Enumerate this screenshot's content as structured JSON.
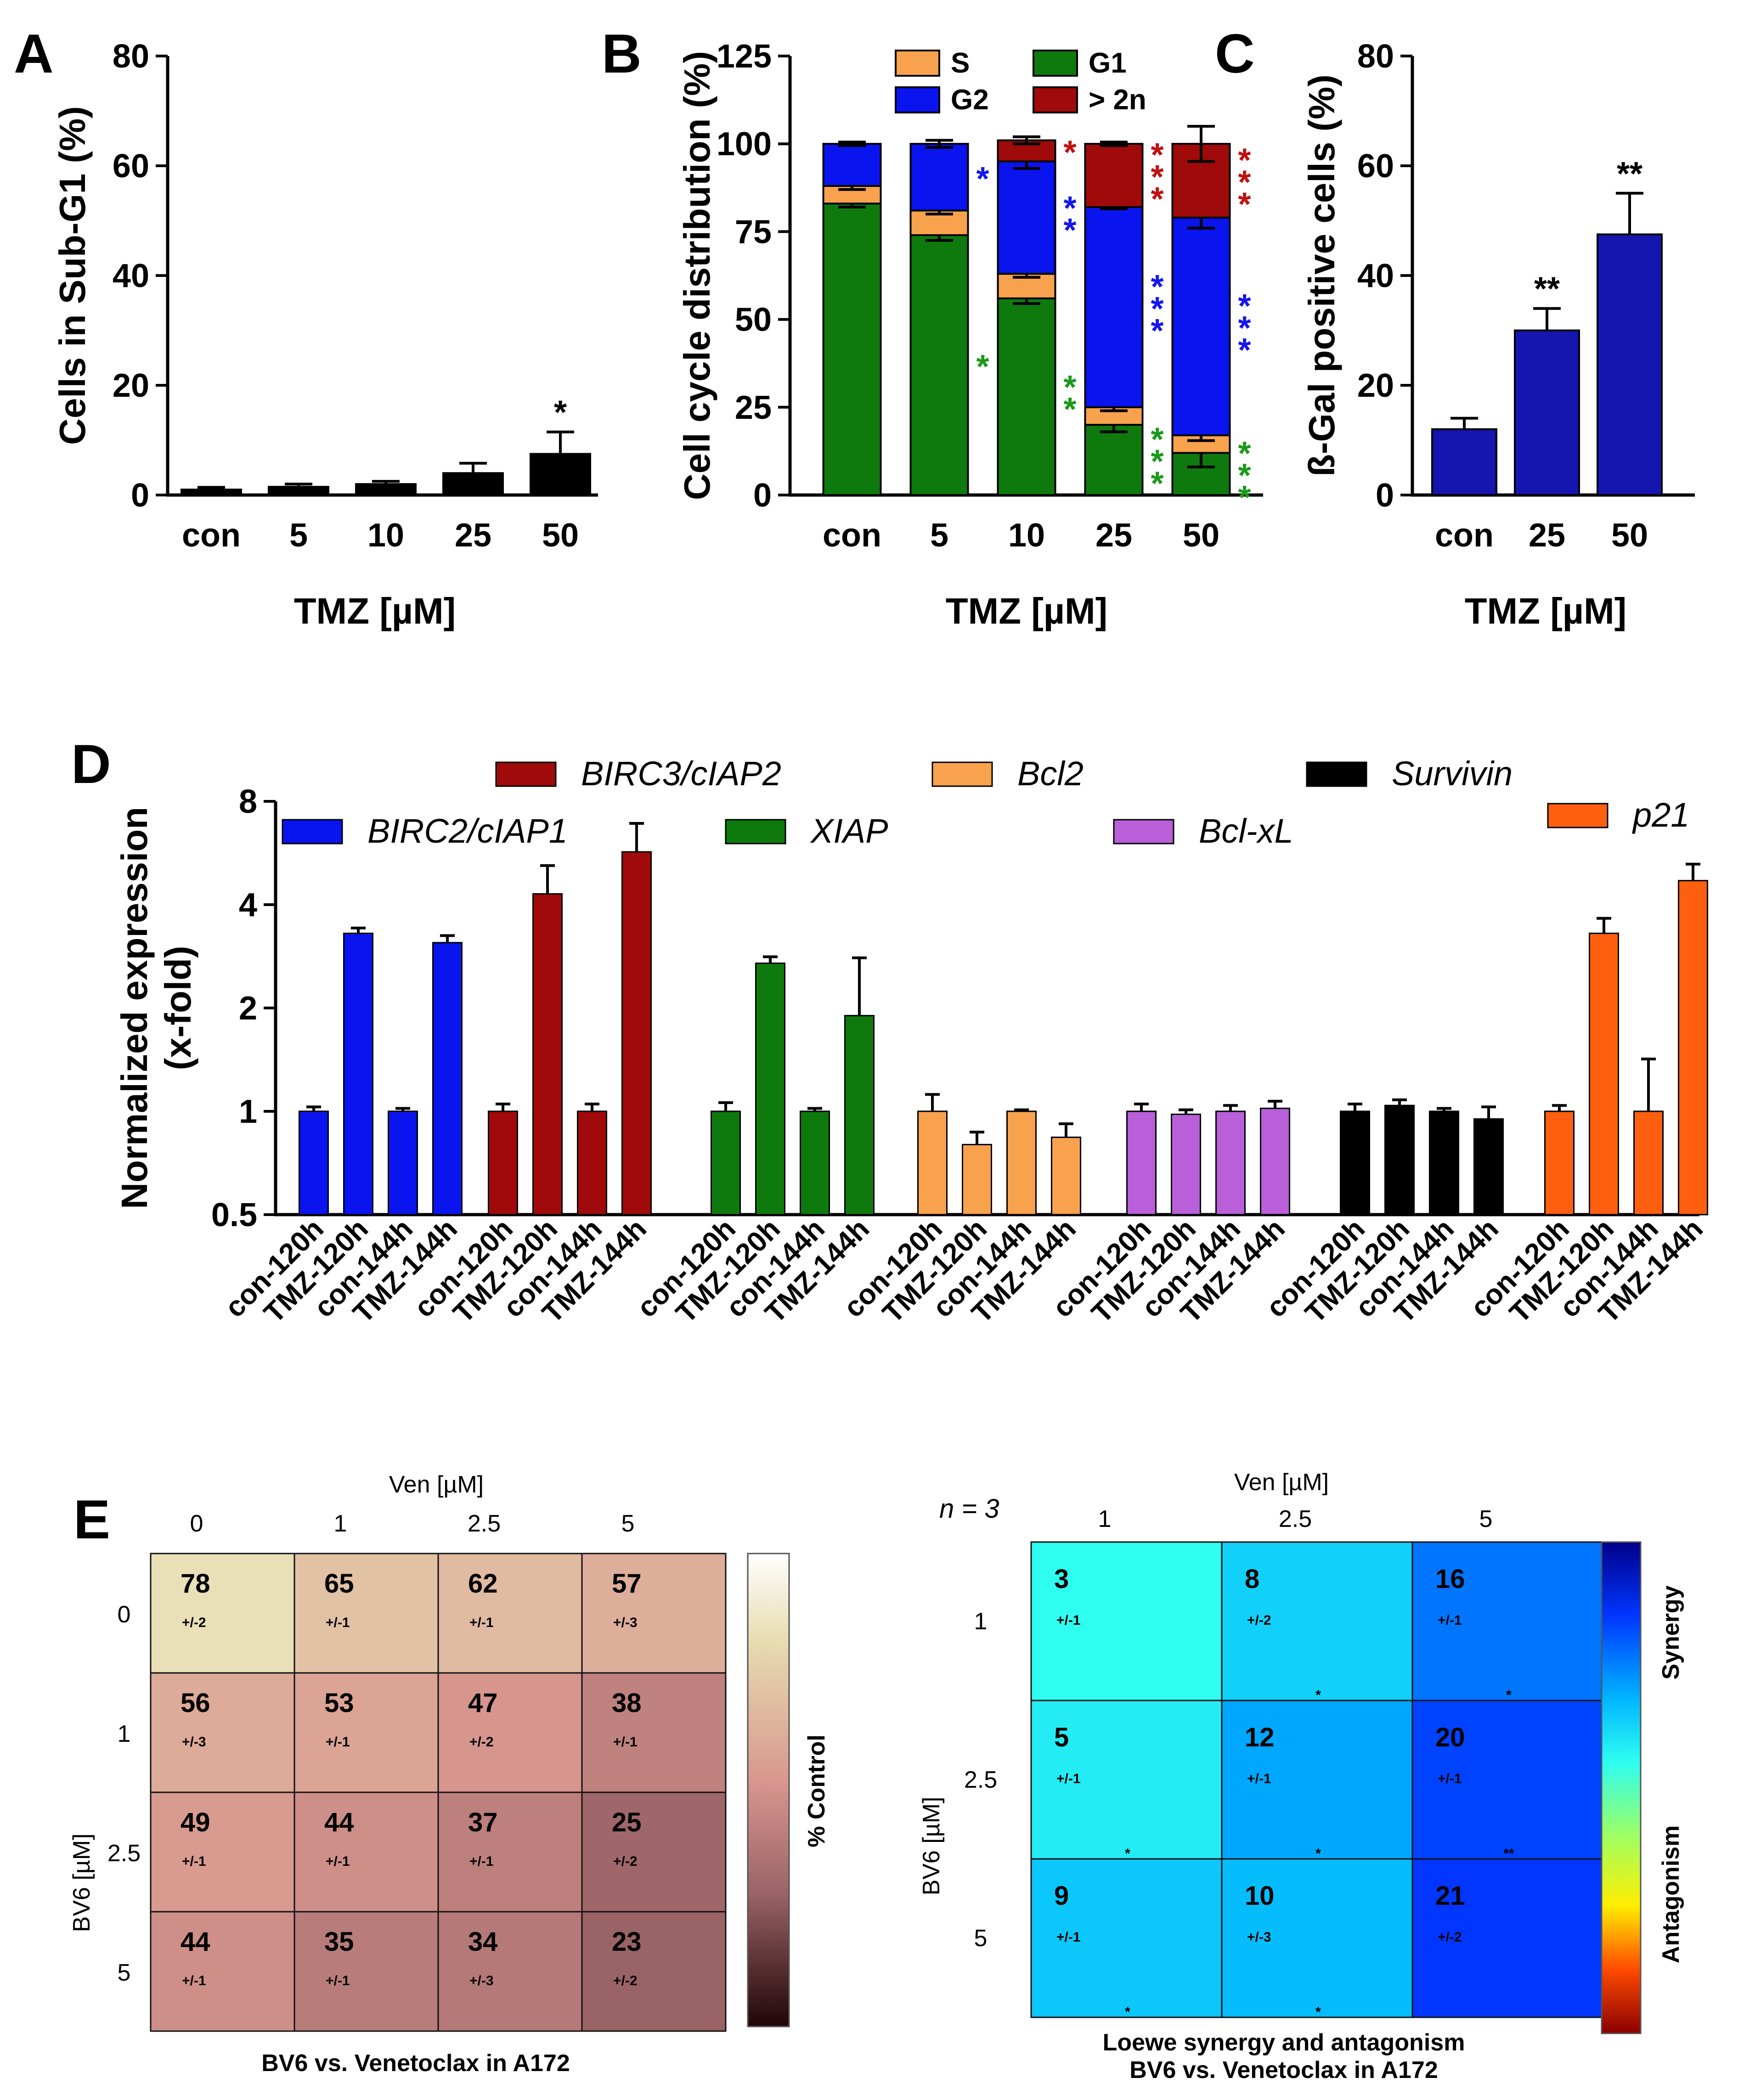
{
  "chart_data": [
    {
      "id": "A",
      "type": "bar",
      "panel_label": "A",
      "ylabel": "Cells in Sub-G1 (%)",
      "xlabel": "TMZ [µM]",
      "ylim": [
        0,
        80
      ],
      "yticks": [
        0,
        20,
        40,
        60,
        80
      ],
      "categories": [
        "con",
        "5",
        "10",
        "25",
        "50"
      ],
      "values": [
        1,
        1.5,
        2,
        4,
        7.5
      ],
      "errors": [
        0.4,
        0.5,
        0.5,
        1.8,
        4
      ],
      "annotations": [
        "",
        "",
        "",
        "",
        "*"
      ],
      "color": "#000000"
    },
    {
      "id": "B",
      "type": "bar",
      "stacked": true,
      "panel_label": "B",
      "ylabel": "Cell cycle distribution (%)",
      "xlabel": "TMZ [µM]",
      "ylim": [
        0,
        125
      ],
      "yticks": [
        0,
        25,
        50,
        75,
        100,
        125
      ],
      "categories": [
        "con",
        "5",
        "10",
        "25",
        "50"
      ],
      "legend": [
        "S",
        "G1",
        "G2",
        "> 2n"
      ],
      "series": [
        {
          "name": "G1",
          "color": "#0e7a0e",
          "values": [
            83,
            74,
            56,
            20,
            12
          ],
          "errors": [
            1,
            1.5,
            1.5,
            2,
            4
          ]
        },
        {
          "name": "S",
          "color": "#f9a24e",
          "values": [
            5,
            7,
            7,
            5,
            5
          ],
          "errors": [
            1,
            1,
            1,
            1,
            1.5
          ]
        },
        {
          "name": "G2",
          "color": "#0a14ee",
          "values": [
            12,
            19,
            32,
            57,
            62
          ],
          "errors": [
            0.5,
            1,
            2,
            0.5,
            3
          ]
        },
        {
          "name": "> 2n",
          "color": "#a00a0a",
          "values": [
            0,
            0,
            6,
            18,
            21
          ],
          "errors": [
            0,
            0,
            1,
            0.5,
            5
          ]
        }
      ],
      "annotations": {
        "G1": [
          "",
          "*",
          "**",
          "***",
          "***"
        ],
        "G2": [
          "",
          "*",
          "**",
          "***",
          "***"
        ],
        "> 2n": [
          "",
          "",
          "*",
          "***",
          "***"
        ]
      }
    },
    {
      "id": "C",
      "type": "bar",
      "panel_label": "C",
      "ylabel": "ß-Gal positive cells (%)",
      "xlabel": "TMZ [µM]",
      "ylim": [
        0,
        80
      ],
      "yticks": [
        0,
        20,
        40,
        60,
        80
      ],
      "categories": [
        "con",
        "25",
        "50"
      ],
      "values": [
        12,
        30,
        47.5
      ],
      "errors": [
        2,
        4,
        7.5
      ],
      "annotations": [
        "",
        "**",
        "**"
      ],
      "color": "#1515b0"
    },
    {
      "id": "D",
      "type": "bar",
      "panel_label": "D",
      "yscale": "log2",
      "ylabel": [
        "Normalized expression",
        "(x-fold)"
      ],
      "ylim": [
        0.5,
        8
      ],
      "yticks": [
        0.5,
        1,
        2,
        4,
        8
      ],
      "ytick_labels": [
        "0.5",
        "1",
        "2",
        "4",
        "8"
      ],
      "categories": [
        "con-120h",
        "TMZ-120h",
        "con-144h",
        "TMZ-144h"
      ],
      "series": [
        {
          "name": "BIRC2/cIAP1",
          "color": "#0a14ee",
          "values": [
            1,
            3.3,
            1,
            3.1
          ],
          "errors": [
            0.03,
            0.12,
            0.02,
            0.15
          ]
        },
        {
          "name": "BIRC3/cIAP2",
          "color": "#a00a0a",
          "values": [
            1,
            4.3,
            1,
            5.7
          ],
          "errors": [
            0.05,
            0.9,
            0.05,
            1.2
          ]
        },
        {
          "name": "XIAP",
          "color": "#0e7a0e",
          "values": [
            1,
            2.7,
            1,
            1.9
          ],
          "errors": [
            0.06,
            0.12,
            0.02,
            0.9
          ]
        },
        {
          "name": "Bcl2",
          "color": "#f9a24e",
          "values": [
            1,
            0.8,
            1,
            0.84
          ],
          "errors": [
            0.12,
            0.07,
            0.01,
            0.08
          ]
        },
        {
          "name": "Bcl-xL",
          "color": "#b85fd9",
          "values": [
            1,
            0.98,
            1,
            1.02
          ],
          "errors": [
            0.05,
            0.03,
            0.04,
            0.05
          ]
        },
        {
          "name": "Survivin",
          "color": "#000000",
          "values": [
            1,
            1.04,
            1,
            0.95
          ],
          "errors": [
            0.05,
            0.04,
            0.02,
            0.08
          ]
        },
        {
          "name": "p21",
          "color": "#ff5f0f",
          "values": [
            1,
            3.3,
            1,
            4.7
          ],
          "errors": [
            0.04,
            0.35,
            0.42,
            0.55
          ]
        }
      ]
    },
    {
      "id": "E1",
      "type": "heatmap",
      "panel_label": "E",
      "xlabel": "Ven [µM]",
      "ylabel": "BV6 [µM]",
      "xticks": [
        "0",
        "1",
        "2.5",
        "5"
      ],
      "yticks": [
        "0",
        "1",
        "2.5",
        "5"
      ],
      "values": [
        [
          78,
          65,
          62,
          57
        ],
        [
          56,
          53,
          47,
          38
        ],
        [
          49,
          44,
          37,
          25
        ],
        [
          44,
          35,
          34,
          23
        ]
      ],
      "sd": [
        [
          "+/-2",
          "+/-1",
          "+/-1",
          "+/-3"
        ],
        [
          "+/-3",
          "+/-1",
          "+/-2",
          "+/-1"
        ],
        [
          "+/-1",
          "+/-1",
          "+/-1",
          "+/-2"
        ],
        [
          "+/-1",
          "+/-1",
          "+/-3",
          "+/-2"
        ]
      ],
      "colorbar_label": "% Control",
      "title": "BV6 vs. Venetoclax in A172"
    },
    {
      "id": "E2",
      "type": "heatmap",
      "xlabel": "Ven [µM]",
      "ylabel": "BV6 [µM]",
      "note": "n = 3",
      "xticks": [
        "1",
        "2.5",
        "5"
      ],
      "yticks": [
        "1",
        "2.5",
        "5"
      ],
      "values": [
        [
          3,
          8,
          16
        ],
        [
          5,
          12,
          20
        ],
        [
          9,
          10,
          21
        ]
      ],
      "sd": [
        [
          "+/-1",
          "+/-2",
          "+/-1"
        ],
        [
          "+/-1",
          "+/-1",
          "+/-1"
        ],
        [
          "+/-1",
          "+/-3",
          "+/-2"
        ]
      ],
      "significance": [
        [
          "",
          "*",
          "*"
        ],
        [
          "*",
          "*",
          "**"
        ],
        [
          "*",
          "*",
          ""
        ]
      ],
      "colorbar_labels": [
        "Synergy",
        "Antagonism"
      ],
      "title": [
        "Loewe synergy and antagonism",
        "BV6 vs. Venetoclax in A172"
      ]
    }
  ]
}
